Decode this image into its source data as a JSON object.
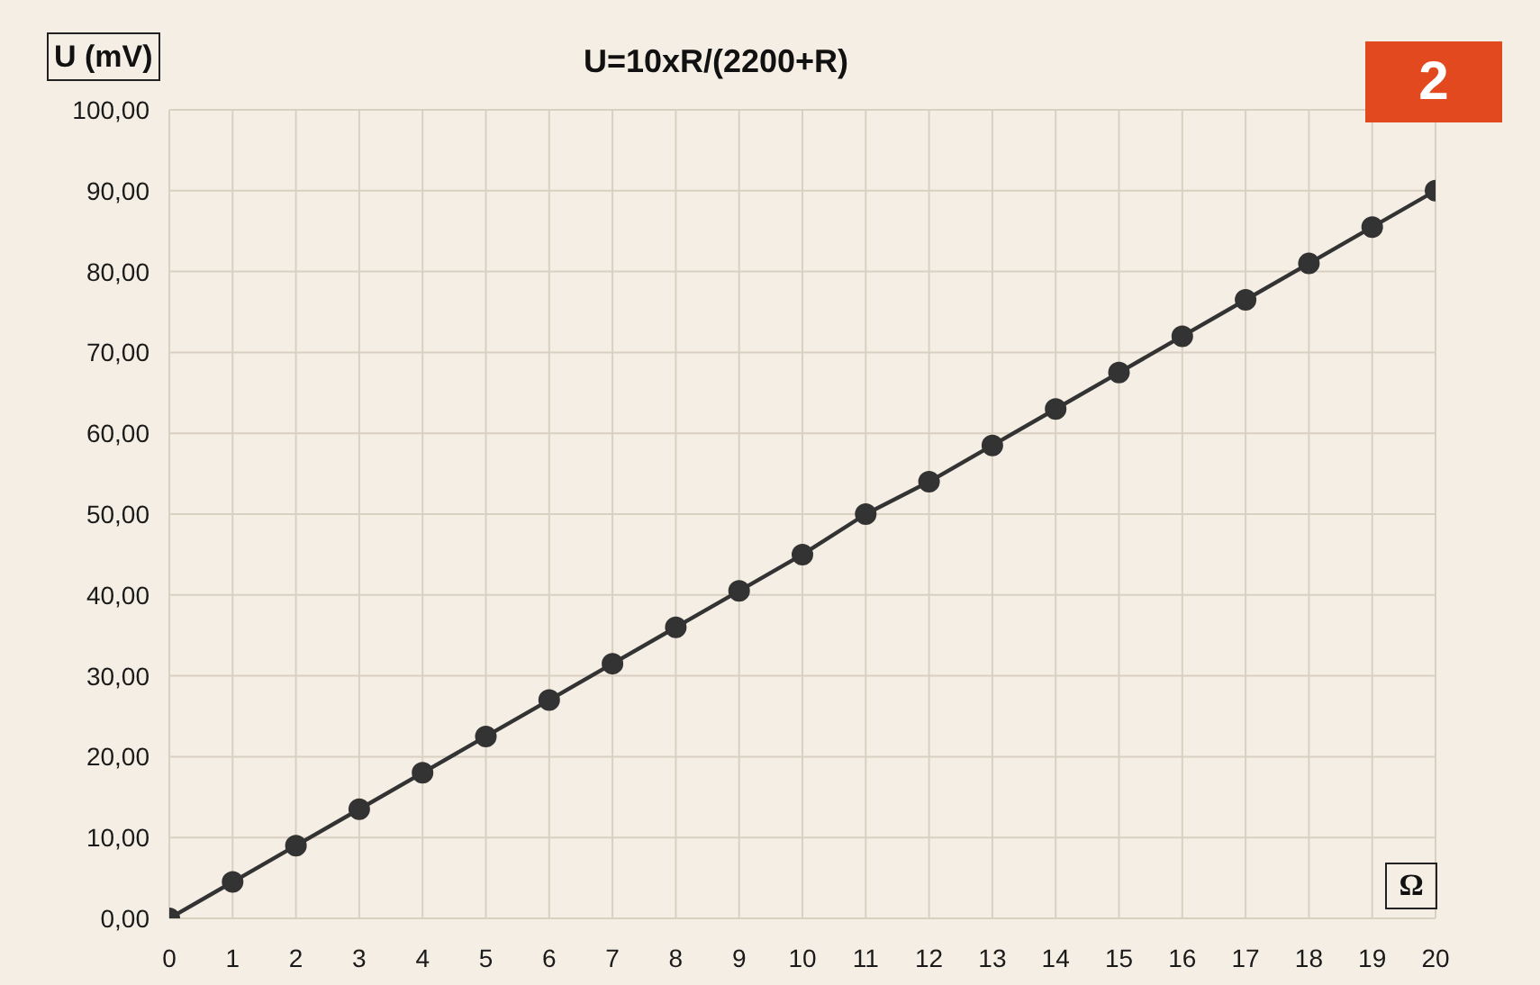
{
  "chart_data": {
    "type": "line",
    "title": "U=10xR/(2200+R)",
    "xlabel": "Ω",
    "ylabel": "U (mV)",
    "annotations": [
      "2"
    ],
    "x": [
      0,
      1,
      2,
      3,
      4,
      5,
      6,
      7,
      8,
      9,
      10,
      11,
      12,
      13,
      14,
      15,
      16,
      17,
      18,
      19,
      20
    ],
    "values": [
      0,
      4.5,
      9,
      13.5,
      18,
      22.5,
      27,
      31.5,
      36,
      40.5,
      45,
      50,
      54,
      58.5,
      63,
      67.5,
      72,
      76.5,
      81,
      85.5,
      90
    ],
    "color": "#333333",
    "xlim": [
      0,
      20
    ],
    "xticks": [
      0,
      1,
      2,
      3,
      4,
      5,
      6,
      7,
      8,
      9,
      10,
      11,
      12,
      13,
      14,
      15,
      16,
      17,
      18,
      19,
      20
    ],
    "ylim": [
      0,
      100
    ],
    "yticks": [
      {
        "value": 0,
        "label": "0,00"
      },
      {
        "value": 10,
        "label": "10,00"
      },
      {
        "value": 20,
        "label": "20,00"
      },
      {
        "value": 30,
        "label": "30,00"
      },
      {
        "value": 40,
        "label": "40,00"
      },
      {
        "value": 50,
        "label": "50,00"
      },
      {
        "value": 60,
        "label": "60,00"
      },
      {
        "value": 70,
        "label": "70,00"
      },
      {
        "value": 80,
        "label": "80,00"
      },
      {
        "value": 90,
        "label": "90,00"
      },
      {
        "value": 100,
        "label": "100,00"
      }
    ],
    "grid": true,
    "marker": "circle",
    "line_style": "solid"
  }
}
